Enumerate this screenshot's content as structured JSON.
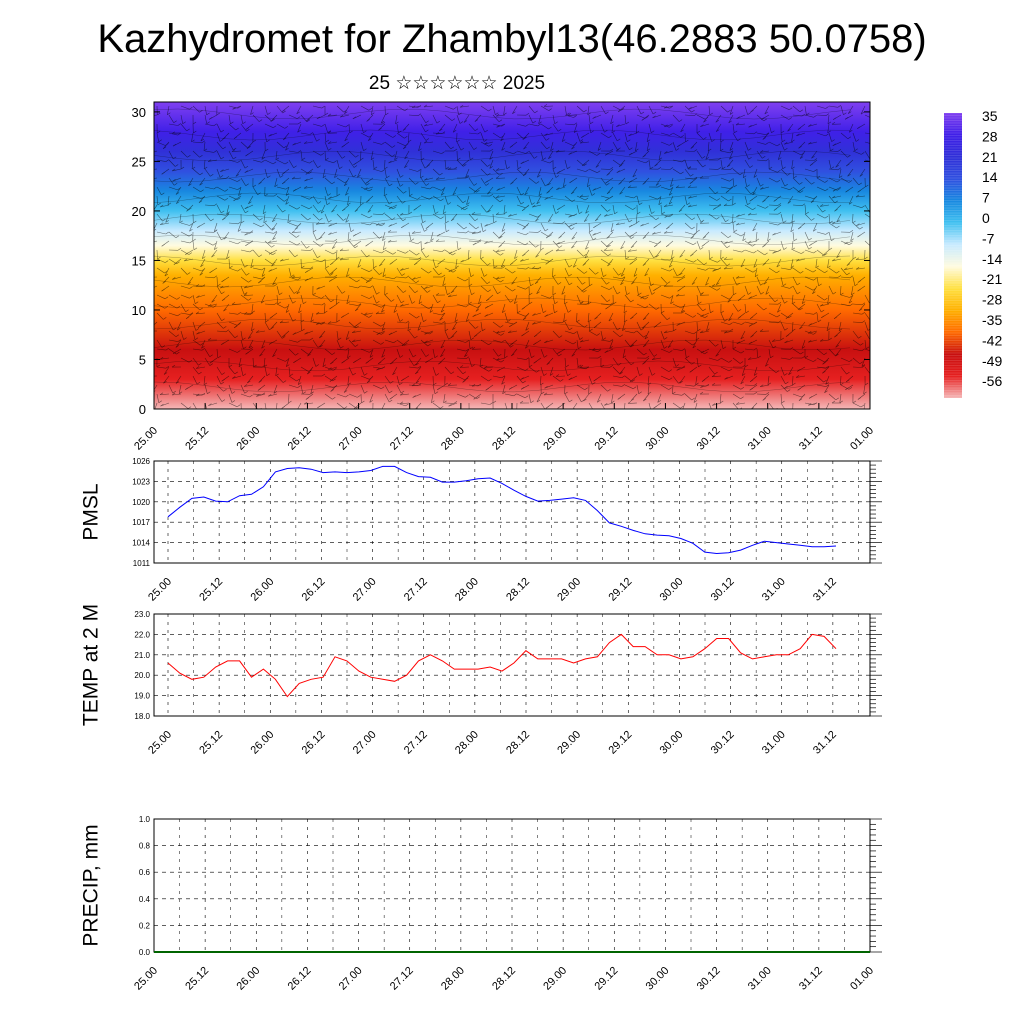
{
  "title": "Kazhydromet for Zhambyl13(46.2883 50.0758)",
  "subtitle": "25 ☆☆☆☆☆☆ 2025",
  "chart_data": [
    {
      "type": "heatmap",
      "name": "cross-section",
      "description_free": true,
      "y_ticks": [
        "0",
        "5",
        "10",
        "15",
        "20",
        "25",
        "30"
      ],
      "ylim": [
        0,
        31
      ],
      "x_ticks": [
        "25.00",
        "25.12",
        "26.00",
        "26.12",
        "27.00",
        "27.12",
        "28.00",
        "28.12",
        "29.00",
        "29.12",
        "30.00",
        "30.12",
        "31.00",
        "31.12",
        "01.00"
      ],
      "colorbar_labels": [
        "35",
        "28",
        "21",
        "14",
        "7",
        "0",
        "-7",
        "-14",
        "-21",
        "-28",
        "-35",
        "-42",
        "-49",
        "-56"
      ],
      "colors": [
        "#f5b8b8",
        "#e62020",
        "#c81010",
        "#ff6a00",
        "#ffb000",
        "#ffe040",
        "#fffbe0",
        "#c8eaff",
        "#40c0f0",
        "#1888e0",
        "#3050e0",
        "#3030d8",
        "#4020e8",
        "#8040f0"
      ],
      "levels": [
        0,
        3,
        6,
        10,
        13.5,
        15,
        16.5,
        18,
        20,
        22,
        24,
        26,
        28,
        31
      ]
    },
    {
      "type": "line",
      "ylabel": "PMSL",
      "ylim": [
        1011,
        1026
      ],
      "y_ticks": [
        "1011",
        "1014",
        "1017",
        "1020",
        "1023",
        "1026"
      ],
      "x_ticks": [
        "25.00",
        "25.12",
        "26.00",
        "26.12",
        "27.00",
        "27.12",
        "28.00",
        "28.12",
        "29.00",
        "29.12",
        "30.00",
        "30.12",
        "31.00",
        "31.12",
        "01.00"
      ],
      "color": "#0000ff",
      "values": [
        1017.8,
        1019.2,
        1020.5,
        1020.7,
        1020.1,
        1020.0,
        1020.9,
        1021.1,
        1022.2,
        1024.4,
        1024.9,
        1025.0,
        1024.8,
        1024.3,
        1024.4,
        1024.3,
        1024.4,
        1024.6,
        1025.2,
        1025.2,
        1024.3,
        1023.7,
        1023.6,
        1022.9,
        1022.9,
        1023.1,
        1023.4,
        1023.5,
        1022.7,
        1021.7,
        1020.8,
        1020.1,
        1020.2,
        1020.4,
        1020.6,
        1020.2,
        1018.7,
        1016.9,
        1016.4,
        1015.8,
        1015.3,
        1015.1,
        1015.0,
        1014.6,
        1013.9,
        1012.6,
        1012.4,
        1012.5,
        1012.9,
        1013.6,
        1014.2,
        1014.0,
        1013.8,
        1013.6,
        1013.4,
        1013.4,
        1013.5
      ]
    },
    {
      "type": "line",
      "ylabel": "TEMP at 2 M",
      "ylim": [
        18.0,
        23.0
      ],
      "y_ticks": [
        "18.0",
        "19.0",
        "20.0",
        "21.0",
        "22.0",
        "23.0"
      ],
      "x_ticks": [
        "25.00",
        "25.12",
        "26.00",
        "26.12",
        "27.00",
        "27.12",
        "28.00",
        "28.12",
        "29.00",
        "29.12",
        "30.00",
        "30.12",
        "31.00",
        "31.12",
        "01.00"
      ],
      "color": "#ff0000",
      "values": [
        20.6,
        20.1,
        19.8,
        19.9,
        20.4,
        20.7,
        20.7,
        19.9,
        20.3,
        19.8,
        18.95,
        19.6,
        19.8,
        19.9,
        20.9,
        20.7,
        20.2,
        19.9,
        19.8,
        19.7,
        20.0,
        20.7,
        21.0,
        20.7,
        20.3,
        20.3,
        20.3,
        20.4,
        20.2,
        20.6,
        21.2,
        20.8,
        20.8,
        20.8,
        20.6,
        20.8,
        20.9,
        21.6,
        22.0,
        21.4,
        21.4,
        21.0,
        21.0,
        20.8,
        20.9,
        21.3,
        21.8,
        21.8,
        21.1,
        20.8,
        20.9,
        21.0,
        21.0,
        21.3,
        22.0,
        21.9,
        21.3
      ]
    },
    {
      "type": "line",
      "ylabel": "PRECIP, mm",
      "ylim": [
        0.0,
        1.0
      ],
      "y_ticks": [
        "0.0",
        "0.2",
        "0.4",
        "0.6",
        "0.8",
        "1.0"
      ],
      "x_ticks": [
        "25.00",
        "25.12",
        "26.00",
        "26.12",
        "27.00",
        "27.12",
        "28.00",
        "28.12",
        "29.00",
        "29.12",
        "30.00",
        "30.12",
        "31.00",
        "31.12",
        "01.00"
      ],
      "color": "#006400",
      "values": [
        0,
        0,
        0,
        0,
        0,
        0,
        0,
        0,
        0,
        0,
        0,
        0,
        0,
        0,
        0
      ]
    }
  ]
}
